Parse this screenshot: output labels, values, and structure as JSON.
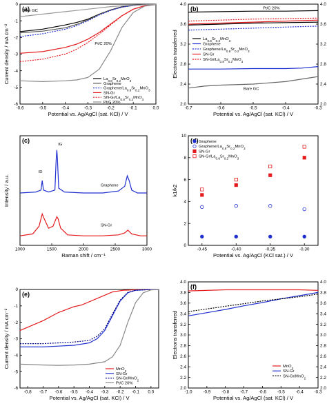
{
  "chart_data": [
    {
      "panel_label": "(a)",
      "type": "line",
      "xlabel": "Potential vs. Ag/AgCl (sat. KCl) / V",
      "ylabel": "Current density / mA cm⁻²",
      "xlim": [
        -0.6,
        0.0
      ],
      "ylim": [
        -6,
        0
      ],
      "xticks": [
        "-0.6",
        "-0.5",
        "-0.4",
        "-0.3",
        "-0.2",
        "-0.1",
        "0.0"
      ],
      "yticks": [
        "-6",
        "-5",
        "-4",
        "-3",
        "-2",
        "-1",
        "0"
      ],
      "legend_position": "center-right",
      "annotations": [
        "Bare GC",
        "Pt/C 20%"
      ],
      "series": [
        {
          "name": "La0.8Sr0.2MnO3",
          "color": "#000000",
          "dash": "solid",
          "x": [
            -0.6,
            -0.5,
            -0.4,
            -0.35,
            -0.3,
            -0.25,
            -0.2,
            -0.15,
            -0.1,
            -0.05,
            0.0
          ],
          "y": [
            -1.65,
            -1.5,
            -1.25,
            -1.1,
            -0.9,
            -0.6,
            -0.35,
            -0.16,
            -0.07,
            -0.03,
            -0.02
          ]
        },
        {
          "name": "Graphene",
          "color": "#555555",
          "dash": "solid",
          "x": [
            -0.6,
            -0.5,
            -0.4,
            -0.35,
            -0.3,
            -0.25,
            -0.2,
            -0.15,
            -0.1,
            -0.05,
            0.0
          ],
          "y": [
            -1.72,
            -1.62,
            -1.42,
            -1.22,
            -0.95,
            -0.62,
            -0.36,
            -0.18,
            -0.08,
            -0.03,
            -0.02
          ]
        },
        {
          "name": "Graphene/La0.8Sr0.2MnO3",
          "color": "#1f2fd0",
          "dash": "dot",
          "x": [
            -0.6,
            -0.5,
            -0.4,
            -0.35,
            -0.3,
            -0.25,
            -0.2,
            -0.15,
            -0.1,
            -0.05,
            0.0
          ],
          "y": [
            -1.95,
            -1.78,
            -1.5,
            -1.3,
            -1.0,
            -0.65,
            -0.38,
            -0.18,
            -0.08,
            -0.03,
            -0.02
          ]
        },
        {
          "name": "SN-Gr",
          "color": "#e41a1c",
          "dash": "solid",
          "x": [
            -0.6,
            -0.5,
            -0.4,
            -0.35,
            -0.3,
            -0.25,
            -0.2,
            -0.15,
            -0.1,
            -0.05,
            0.0
          ],
          "y": [
            -2.95,
            -2.85,
            -2.6,
            -2.4,
            -2.1,
            -1.7,
            -1.2,
            -0.7,
            -0.3,
            -0.1,
            -0.03
          ]
        },
        {
          "name": "SN-Gr/La0.8Sr0.2MnO3",
          "color": "#e41a1c",
          "dash": "dot",
          "x": [
            -0.6,
            -0.5,
            -0.4,
            -0.35,
            -0.3,
            -0.25,
            -0.2,
            -0.15,
            -0.1,
            -0.05,
            0.0
          ],
          "y": [
            -3.45,
            -3.3,
            -3.0,
            -2.7,
            -2.3,
            -1.8,
            -1.25,
            -0.7,
            -0.3,
            -0.1,
            -0.03
          ]
        },
        {
          "name": "Pt/C 20%",
          "color": "#888888",
          "dash": "solid",
          "x": [
            -0.6,
            -0.5,
            -0.4,
            -0.35,
            -0.3,
            -0.25,
            -0.2,
            -0.15,
            -0.1,
            -0.05,
            0.0
          ],
          "y": [
            -4.6,
            -4.65,
            -4.6,
            -4.55,
            -4.4,
            -3.9,
            -2.8,
            -1.4,
            -0.5,
            -0.12,
            -0.03
          ]
        },
        {
          "name": "Bare GC",
          "color": "#999999",
          "dash": "solid",
          "x": [
            -0.6,
            -0.5,
            -0.4,
            -0.3,
            -0.2,
            -0.1,
            0.0
          ],
          "y": [
            -0.75,
            -0.6,
            -0.45,
            -0.3,
            -0.15,
            -0.06,
            -0.02
          ]
        }
      ]
    },
    {
      "panel_label": "(b)",
      "type": "line",
      "xlabel": "Potential vs. Ag/AgCl (sat. KCl) / V",
      "ylabel": "Electrons transferred",
      "xlim": [
        -0.7,
        -0.3
      ],
      "ylim": [
        2.0,
        4.0
      ],
      "xticks": [
        "-0.7",
        "-0.6",
        "-0.5",
        "-0.4",
        "-0.3"
      ],
      "yticks": [
        "2.0",
        "2.4",
        "2.8",
        "3.2",
        "3.6",
        "4.0"
      ],
      "legend_position": "center-left",
      "annotations": [
        "Pt/C 20%",
        "Bare GC"
      ],
      "series": [
        {
          "name": "La0.8Sr0.2MnO3",
          "color": "#000000",
          "dash": "solid",
          "x": [
            -0.7,
            -0.6,
            -0.5,
            -0.4,
            -0.3
          ],
          "y": [
            3.58,
            3.6,
            3.62,
            3.63,
            3.64
          ]
        },
        {
          "name": "Graphene",
          "color": "#1f2fd0",
          "dash": "solid",
          "x": [
            -0.7,
            -0.6,
            -0.5,
            -0.4,
            -0.35,
            -0.3
          ],
          "y": [
            2.7,
            2.7,
            2.71,
            2.71,
            2.72,
            2.75
          ]
        },
        {
          "name": "Graphene/La0.8Sr0.2MnO3",
          "color": "#1f2fd0",
          "dash": "dot",
          "x": [
            -0.7,
            -0.6,
            -0.5,
            -0.4,
            -0.3
          ],
          "y": [
            3.48,
            3.5,
            3.52,
            3.54,
            3.56
          ]
        },
        {
          "name": "SN-Gr",
          "color": "#e41a1c",
          "dash": "solid",
          "x": [
            -0.7,
            -0.6,
            -0.5,
            -0.4,
            -0.3
          ],
          "y": [
            3.6,
            3.62,
            3.64,
            3.66,
            3.68
          ]
        },
        {
          "name": "SN-Gr/La0.8Sr0.2MnO3",
          "color": "#e41a1c",
          "dash": "dot",
          "x": [
            -0.7,
            -0.6,
            -0.5,
            -0.4,
            -0.3
          ],
          "y": [
            3.66,
            3.68,
            3.7,
            3.71,
            3.72
          ]
        },
        {
          "name": "Pt/C 20%",
          "color": "#000000",
          "dash": "solid",
          "x": [
            -0.7,
            -0.6,
            -0.5,
            -0.4,
            -0.3
          ],
          "y": [
            3.84,
            3.85,
            3.86,
            3.86,
            3.87
          ]
        },
        {
          "name": "Bare GC",
          "color": "#666666",
          "dash": "solid",
          "x": [
            -0.7,
            -0.65,
            -0.6,
            -0.5,
            -0.4,
            -0.3
          ],
          "y": [
            2.32,
            2.36,
            2.38,
            2.4,
            2.45,
            2.55
          ]
        }
      ]
    },
    {
      "panel_label": "(c)",
      "type": "line",
      "xlabel": "Raman shift / cm⁻¹",
      "ylabel": "Intensity / a.u.",
      "xlim": [
        1000,
        3000
      ],
      "xticks": [
        "1000",
        "1500",
        "2000",
        "2500",
        "3000"
      ],
      "peak_labels": [
        "ID",
        "IG"
      ],
      "series": [
        {
          "name": "Graphene",
          "color": "#1f2fd0",
          "x": [
            1000,
            1250,
            1330,
            1350,
            1370,
            1450,
            1550,
            1570,
            1580,
            1590,
            1610,
            1700,
            2000,
            2300,
            2550,
            2650,
            2690,
            2720,
            2760,
            2850,
            3000
          ],
          "y": [
            0.55,
            0.56,
            0.58,
            0.68,
            0.58,
            0.56,
            0.58,
            0.9,
            1.0,
            0.9,
            0.6,
            0.56,
            0.55,
            0.55,
            0.57,
            0.62,
            0.73,
            0.68,
            0.58,
            0.55,
            0.55
          ]
        },
        {
          "name": "SN-Gr",
          "color": "#e41a1c",
          "x": [
            1000,
            1200,
            1300,
            1350,
            1380,
            1450,
            1520,
            1580,
            1600,
            1640,
            1750,
            2000,
            2300,
            2550,
            2650,
            2700,
            2760,
            2900,
            3000
          ],
          "y": [
            0.1,
            0.12,
            0.2,
            0.33,
            0.28,
            0.18,
            0.2,
            0.3,
            0.28,
            0.18,
            0.11,
            0.1,
            0.1,
            0.11,
            0.13,
            0.16,
            0.12,
            0.1,
            0.1
          ]
        }
      ]
    },
    {
      "panel_label": "(d)",
      "type": "scatter",
      "xlabel": "Potential vs. Ag/AgCl (KCl sat.) / V",
      "ylabel": "k1/k2",
      "xlim": [
        -0.47,
        -0.28
      ],
      "ylim": [
        0,
        10
      ],
      "xticks": [
        "-0.45",
        "-0.40",
        "-0.35",
        "-0.30"
      ],
      "yticks": [
        "0",
        "2",
        "4",
        "6",
        "8",
        "10"
      ],
      "legend_position": "top-left",
      "x": [
        -0.45,
        -0.4,
        -0.35,
        -0.3
      ],
      "series": [
        {
          "name": "Graphene",
          "color": "#1f2fd0",
          "marker": "filled-circle",
          "values": [
            0.8,
            0.8,
            0.8,
            0.8
          ]
        },
        {
          "name": "Graphene/La0.8Sr0.2MnO3",
          "color": "#1f2fd0",
          "marker": "open-circle",
          "values": [
            3.5,
            3.6,
            3.6,
            3.3
          ]
        },
        {
          "name": "SN-Gr",
          "color": "#e41a1c",
          "marker": "filled-square",
          "values": [
            4.6,
            5.5,
            6.4,
            8.0
          ]
        },
        {
          "name": "SN-Gr/La0.8Sr0.2MnO3",
          "color": "#e41a1c",
          "marker": "open-square",
          "values": [
            5.1,
            6.0,
            7.2,
            9.0
          ]
        }
      ]
    },
    {
      "panel_label": "(e)",
      "type": "line",
      "xlabel": "Potential vs. Ag/AgCl (sat. KCl) / V",
      "ylabel": "Current density / mA cm⁻²",
      "xlim": [
        -0.85,
        0.05
      ],
      "ylim": [
        -6,
        0
      ],
      "xticks": [
        "-0.8",
        "-0.7",
        "-0.6",
        "-0.5",
        "-0.4",
        "-0.3",
        "-0.2",
        "-0.1",
        "0.0"
      ],
      "yticks": [
        "-6",
        "-5",
        "-4",
        "-3",
        "-2",
        "-1",
        "0"
      ],
      "legend_position": "bottom-left",
      "series": [
        {
          "name": "MnO2",
          "color": "#e41a1c",
          "dash": "solid",
          "x": [
            -0.85,
            -0.7,
            -0.6,
            -0.5,
            -0.45,
            -0.35,
            -0.25,
            -0.18,
            -0.1,
            0.0,
            0.05
          ],
          "y": [
            -2.5,
            -1.9,
            -1.4,
            -1.05,
            -0.95,
            -0.55,
            -0.15,
            -0.05,
            -0.02,
            -0.01,
            -0.01
          ]
        },
        {
          "name": "SN-Gr",
          "color": "#1f2fd0",
          "dash": "solid",
          "x": [
            -0.85,
            -0.7,
            -0.6,
            -0.5,
            -0.4,
            -0.35,
            -0.3,
            -0.25,
            -0.2,
            -0.15,
            -0.1,
            0.0,
            0.05
          ],
          "y": [
            -3.5,
            -3.5,
            -3.45,
            -3.4,
            -3.25,
            -3.0,
            -2.5,
            -1.6,
            -0.7,
            -0.2,
            -0.05,
            -0.01,
            -0.01
          ]
        },
        {
          "name": "SN-Gr/MnO2",
          "color": "#000080",
          "dash": "dot",
          "x": [
            -0.85,
            -0.7,
            -0.6,
            -0.5,
            -0.4,
            -0.35,
            -0.3,
            -0.25,
            -0.2,
            -0.15,
            -0.1,
            0.0,
            0.05
          ],
          "y": [
            -3.3,
            -3.3,
            -3.25,
            -3.2,
            -3.1,
            -2.85,
            -2.4,
            -1.5,
            -0.65,
            -0.18,
            -0.05,
            -0.01,
            -0.01
          ]
        },
        {
          "name": "Pt/C 20%",
          "color": "#888888",
          "dash": "solid",
          "x": [
            -0.85,
            -0.7,
            -0.6,
            -0.5,
            -0.4,
            -0.3,
            -0.25,
            -0.2,
            -0.15,
            -0.1,
            -0.05,
            0.0,
            0.05
          ],
          "y": [
            -4.55,
            -4.6,
            -4.62,
            -4.6,
            -4.55,
            -4.4,
            -4.1,
            -3.4,
            -2.0,
            -0.8,
            -0.2,
            -0.03,
            -0.01
          ]
        }
      ]
    },
    {
      "panel_label": "(f)",
      "type": "line",
      "xlabel": "Potential vs. Ag/AgCl (sat. KCl) / V",
      "ylabel": "Electrons transferred",
      "xlim": [
        -1.0,
        -0.3
      ],
      "ylim": [
        2.0,
        4.0
      ],
      "xticks": [
        "-1.0",
        "-0.9",
        "-0.8",
        "-0.7",
        "-0.6",
        "-0.5",
        "-0.4",
        "-0.3"
      ],
      "yticks": [
        "2.0",
        "2.2",
        "2.4",
        "2.6",
        "2.8",
        "3.0",
        "3.2",
        "3.4",
        "3.6",
        "3.8",
        "4.0"
      ],
      "legend_position": "bottom-right",
      "series": [
        {
          "name": "MnO2",
          "color": "#e41a1c",
          "dash": "solid",
          "x": [
            -1.0,
            -0.8,
            -0.6,
            -0.4,
            -0.3
          ],
          "y": [
            3.83,
            3.85,
            3.85,
            3.85,
            3.84
          ]
        },
        {
          "name": "SN-Gr",
          "color": "#1f2fd0",
          "dash": "solid",
          "x": [
            -1.0,
            -0.9,
            -0.8,
            -0.7,
            -0.6,
            -0.5,
            -0.4,
            -0.3
          ],
          "y": [
            3.36,
            3.42,
            3.48,
            3.55,
            3.61,
            3.68,
            3.74,
            3.8
          ]
        },
        {
          "name": "SN-Gr/MnO2",
          "color": "#000000",
          "dash": "dot",
          "x": [
            -1.0,
            -0.9,
            -0.8,
            -0.7,
            -0.6,
            -0.5,
            -0.4,
            -0.3
          ],
          "y": [
            3.44,
            3.49,
            3.54,
            3.59,
            3.64,
            3.68,
            3.72,
            3.77
          ]
        }
      ]
    }
  ]
}
